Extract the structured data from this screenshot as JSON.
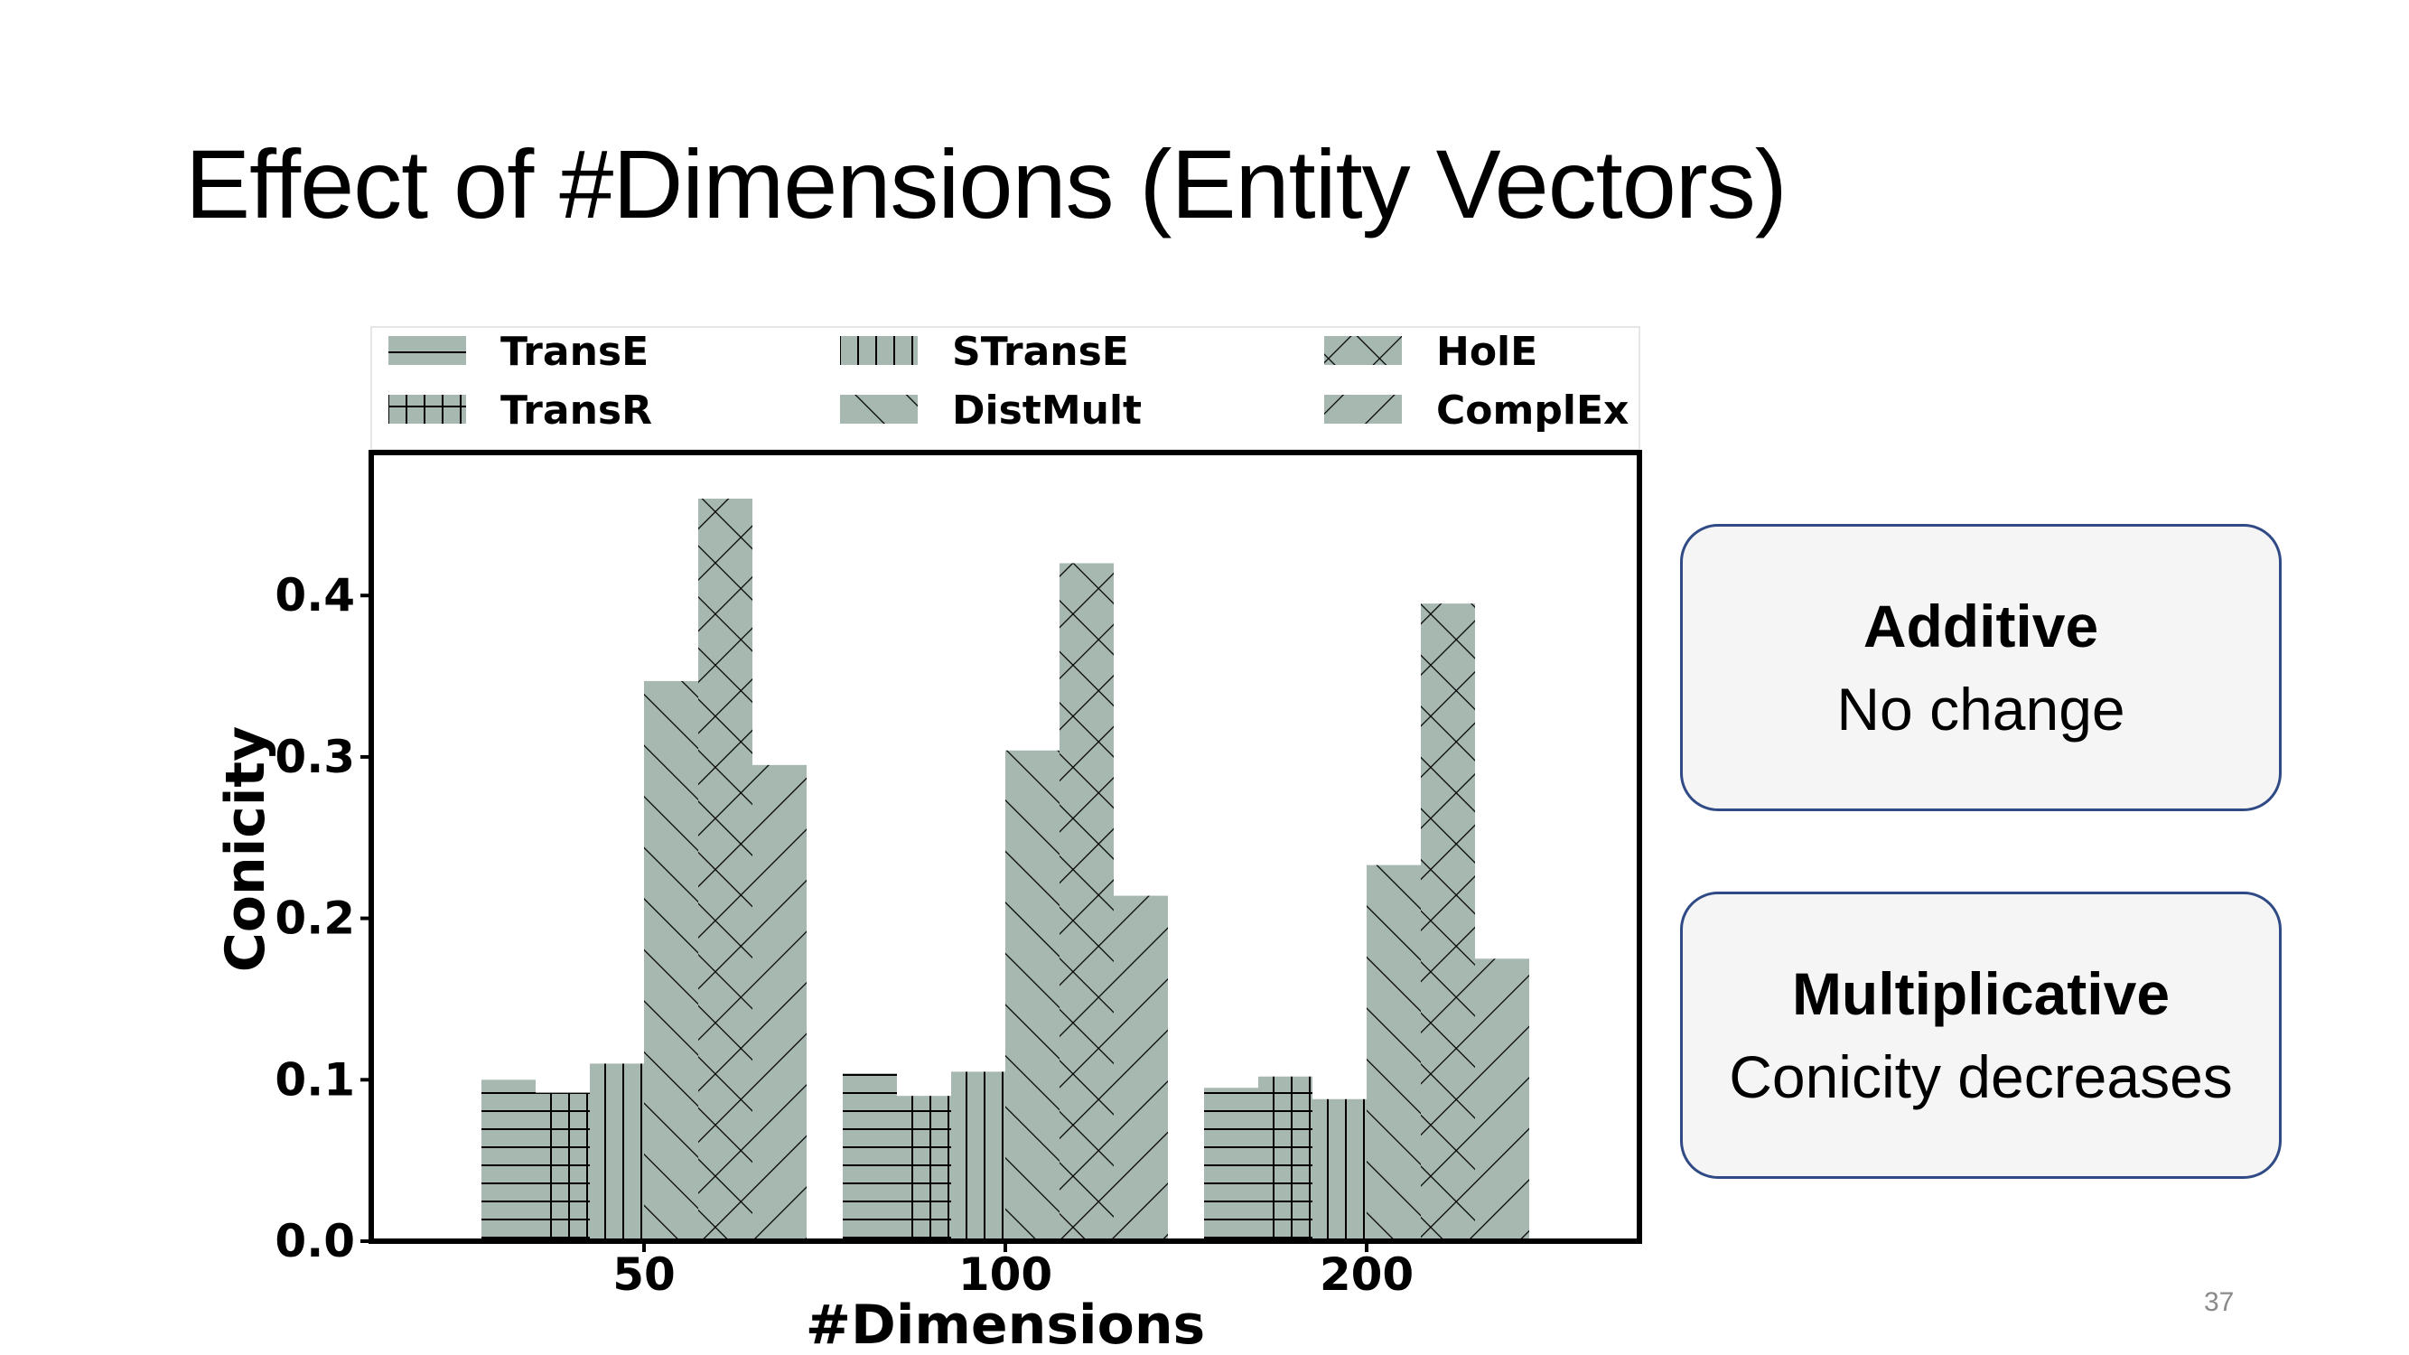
{
  "slide": {
    "title": "Effect of #Dimensions (Entity Vectors)",
    "page_number": "37"
  },
  "callouts": [
    {
      "title": "Additive",
      "text": "No change"
    },
    {
      "title": "Multiplicative",
      "text": "Conicity decreases"
    }
  ],
  "colors": {
    "bar_fill": "#a6b8b0",
    "hatch": "#000000",
    "callout_border": "#2f4a85",
    "callout_fill": "#f5f5f5"
  },
  "chart_data": {
    "type": "bar",
    "title": "",
    "xlabel": "#Dimensions",
    "ylabel": "Conicity",
    "categories": [
      "50",
      "100",
      "200"
    ],
    "ylim": [
      0,
      0.48
    ],
    "yticks": [
      "0.0",
      "0.1",
      "0.2",
      "0.3",
      "0.4"
    ],
    "grid": false,
    "legend_position": "top",
    "series": [
      {
        "name": "TransE",
        "hatch": "horizontal",
        "values": [
          0.1,
          0.104,
          0.095
        ]
      },
      {
        "name": "TransR",
        "hatch": "grid",
        "values": [
          0.092,
          0.09,
          0.102
        ]
      },
      {
        "name": "STransE",
        "hatch": "vertical",
        "values": [
          0.11,
          0.105,
          0.088
        ]
      },
      {
        "name": "DistMult",
        "hatch": "backslash",
        "values": [
          0.347,
          0.304,
          0.233
        ]
      },
      {
        "name": "HolE",
        "hatch": "cross",
        "values": [
          0.46,
          0.42,
          0.395
        ]
      },
      {
        "name": "ComplEx",
        "hatch": "slash",
        "values": [
          0.295,
          0.214,
          0.175
        ]
      }
    ]
  }
}
